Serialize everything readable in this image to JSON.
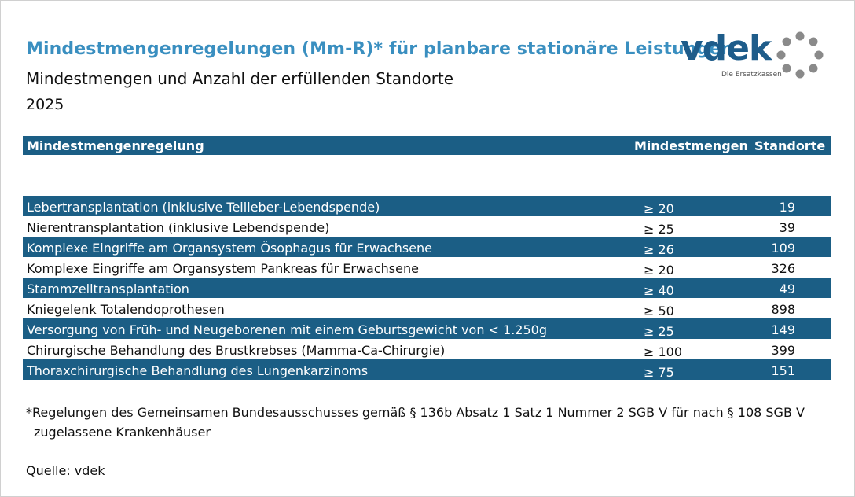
{
  "header": {
    "title": "Mindestmengenregelungen (Mm-R)* für planbare stationäre Leistungen",
    "subtitle": "Mindestmengen und Anzahl der erfüllenden Standorte",
    "year": "2025"
  },
  "logo": {
    "text": "vdek",
    "tagline": "Die Ersatzkassen",
    "color": "#1e5c8a",
    "ring_color": "#8a8a8a"
  },
  "table": {
    "columns": [
      "Mindestmengenregelung",
      "Mindestmengen",
      "Standorte"
    ],
    "row_color_dark": "#1b5e85",
    "rows": [
      {
        "name": "Lebertransplantation (inklusive Teilleber-Lebendspende)",
        "min": "≥ 20",
        "standorte": "19",
        "style": "dark"
      },
      {
        "name": "Nierentransplantation (inklusive Lebendspende)",
        "min": "≥ 25",
        "standorte": "39",
        "style": "light"
      },
      {
        "name": "Komplexe Eingriffe am Organsystem Ösophagus für Erwachsene",
        "min": "≥ 26",
        "standorte": "109",
        "style": "dark"
      },
      {
        "name": "Komplexe Eingriffe am Organsystem Pankreas für Erwachsene",
        "min": "≥ 20",
        "standorte": "326",
        "style": "light"
      },
      {
        "name": "Stammzelltransplantation",
        "min": "≥ 40",
        "standorte": "49",
        "style": "dark"
      },
      {
        "name": "Kniegelenk Totalendoprothesen",
        "min": "≥ 50",
        "standorte": "898",
        "style": "light"
      },
      {
        "name": "Versorgung von Früh- und Neugeborenen mit einem Geburtsgewicht von < 1.250g",
        "min": "≥ 25",
        "standorte": "149",
        "style": "dark"
      },
      {
        "name": "Chirurgische Behandlung des Brustkrebses (Mamma-Ca-Chirurgie)",
        "min": "≥ 100",
        "standorte": "399",
        "style": "light"
      },
      {
        "name": "Thoraxchirurgische Behandlung des Lungenkarzinoms",
        "min": "≥ 75",
        "standorte": "151",
        "style": "dark"
      }
    ]
  },
  "footnote": {
    "line1": "*Regelungen des Gemeinsamen Bundesausschusses gemäß § 136b Absatz 1 Satz 1 Nummer 2 SGB V für nach § 108 SGB V",
    "line2": "zugelassene Krankenhäuser"
  },
  "source": "Quelle: vdek"
}
